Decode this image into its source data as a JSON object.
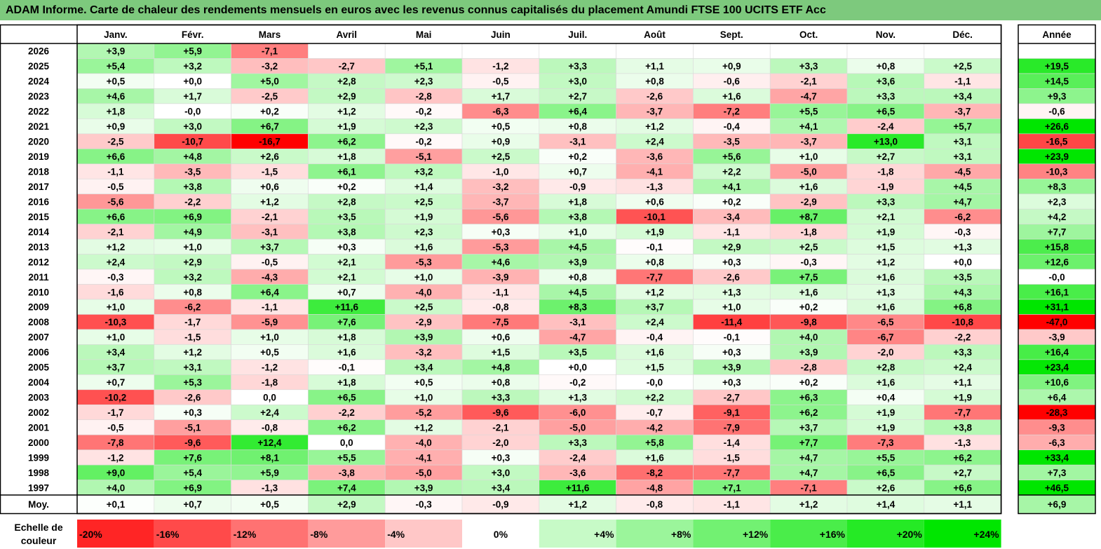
{
  "title": "ADAM Informe. Carte de chaleur des rendements mensuels en euros avec les revenus connus capitalisés du placement Amundi FTSE 100 UCITS ETF Acc",
  "colors": {
    "title_bg": "#7dc97d",
    "negative_max": "#ff0000",
    "positive_max": "#00e600",
    "neutral": "#ffffff"
  },
  "chart_data": {
    "type": "heatmap",
    "title": "ADAM Informe. Carte de chaleur des rendements mensuels en euros avec les revenus connus capitalisés du placement Amundi FTSE 100 UCITS ETF Acc",
    "months": [
      "Janv.",
      "Févr.",
      "Mars",
      "Avril",
      "Mai",
      "Juin",
      "Juil.",
      "Août",
      "Sept.",
      "Oct.",
      "Nov.",
      "Déc."
    ],
    "year_header": "Année",
    "rows": [
      {
        "year": "2026",
        "months": [
          "+3,9",
          "+5,9",
          "-7,1",
          "",
          "",
          "",
          "",
          "",
          "",
          "",
          "",
          ""
        ],
        "annual": ""
      },
      {
        "year": "2025",
        "months": [
          "+5,4",
          "+3,2",
          "-3,2",
          "-2,7",
          "+5,1",
          "-1,2",
          "+3,3",
          "+1,1",
          "+0,9",
          "+3,3",
          "+0,8",
          "+2,5"
        ],
        "annual": "+19,5"
      },
      {
        "year": "2024",
        "months": [
          "+0,5",
          "+0,0",
          "+5,0",
          "+2,8",
          "+2,3",
          "-0,5",
          "+3,0",
          "+0,8",
          "-0,6",
          "-2,1",
          "+3,6",
          "-1,1"
        ],
        "annual": "+14,5"
      },
      {
        "year": "2023",
        "months": [
          "+4,6",
          "+1,7",
          "-2,5",
          "+2,9",
          "-2,8",
          "+1,7",
          "+2,7",
          "-2,6",
          "+1,6",
          "-4,7",
          "+3,3",
          "+3,4"
        ],
        "annual": "+9,3"
      },
      {
        "year": "2022",
        "months": [
          "+1,8",
          "-0,0",
          "+0,2",
          "+1,2",
          "-0,2",
          "-6,3",
          "+6,4",
          "-3,7",
          "-7,2",
          "+5,5",
          "+6,5",
          "-3,7"
        ],
        "annual": "-0,6"
      },
      {
        "year": "2021",
        "months": [
          "+0,9",
          "+3,0",
          "+6,7",
          "+1,9",
          "+2,3",
          "+0,5",
          "+0,8",
          "+1,2",
          "-0,4",
          "+4,1",
          "-2,4",
          "+5,7"
        ],
        "annual": "+26,6"
      },
      {
        "year": "2020",
        "months": [
          "-2,5",
          "-10,7",
          "-16,7",
          "+6,2",
          "-0,2",
          "+0,9",
          "-3,1",
          "+2,4",
          "-3,5",
          "-3,7",
          "+13,0",
          "+3,1"
        ],
        "annual": "-16,5"
      },
      {
        "year": "2019",
        "months": [
          "+6,6",
          "+4,8",
          "+2,6",
          "+1,8",
          "-5,1",
          "+2,5",
          "+0,2",
          "-3,6",
          "+5,6",
          "+1,0",
          "+2,7",
          "+3,1"
        ],
        "annual": "+23,9"
      },
      {
        "year": "2018",
        "months": [
          "-1,1",
          "-3,5",
          "-1,5",
          "+6,1",
          "+3,2",
          "-1,0",
          "+0,7",
          "-4,1",
          "+2,2",
          "-5,0",
          "-1,8",
          "-4,5"
        ],
        "annual": "-10,3"
      },
      {
        "year": "2017",
        "months": [
          "-0,5",
          "+3,8",
          "+0,6",
          "+0,2",
          "+1,4",
          "-3,2",
          "-0,9",
          "-1,3",
          "+4,1",
          "+1,6",
          "-1,9",
          "+4,5"
        ],
        "annual": "+8,3"
      },
      {
        "year": "2016",
        "months": [
          "-5,6",
          "-2,2",
          "+1,2",
          "+2,8",
          "+2,5",
          "-3,7",
          "+1,8",
          "+0,6",
          "+0,2",
          "-2,9",
          "+3,3",
          "+4,7"
        ],
        "annual": "+2,3"
      },
      {
        "year": "2015",
        "months": [
          "+6,6",
          "+6,9",
          "-2,1",
          "+3,5",
          "+1,9",
          "-5,6",
          "+3,8",
          "-10,1",
          "-3,4",
          "+8,7",
          "+2,1",
          "-6,2"
        ],
        "annual": "+4,2"
      },
      {
        "year": "2014",
        "months": [
          "-2,1",
          "+4,9",
          "-3,1",
          "+3,8",
          "+2,3",
          "+0,3",
          "+1,0",
          "+1,9",
          "-1,1",
          "-1,8",
          "+1,9",
          "-0,3"
        ],
        "annual": "+7,7"
      },
      {
        "year": "2013",
        "months": [
          "+1,2",
          "+1,0",
          "+3,7",
          "+0,3",
          "+1,6",
          "-5,3",
          "+4,5",
          "-0,1",
          "+2,9",
          "+2,5",
          "+1,5",
          "+1,3"
        ],
        "annual": "+15,8"
      },
      {
        "year": "2012",
        "months": [
          "+2,4",
          "+2,9",
          "-0,5",
          "+2,1",
          "-5,3",
          "+4,6",
          "+3,9",
          "+0,8",
          "+0,3",
          "-0,3",
          "+1,2",
          "+0,0"
        ],
        "annual": "+12,6"
      },
      {
        "year": "2011",
        "months": [
          "-0,3",
          "+3,2",
          "-4,3",
          "+2,1",
          "+1,0",
          "-3,9",
          "+0,8",
          "-7,7",
          "-2,6",
          "+7,5",
          "+1,6",
          "+3,5"
        ],
        "annual": "-0,0"
      },
      {
        "year": "2010",
        "months": [
          "-1,6",
          "+0,8",
          "+6,4",
          "+0,7",
          "-4,0",
          "-1,1",
          "+4,5",
          "+1,2",
          "+1,3",
          "+1,6",
          "+1,3",
          "+4,3"
        ],
        "annual": "+16,1"
      },
      {
        "year": "2009",
        "months": [
          "+1,0",
          "-6,2",
          "-1,1",
          "+11,6",
          "+2,5",
          "-0,8",
          "+8,3",
          "+3,7",
          "+1,0",
          "+0,2",
          "+1,6",
          "+6,8"
        ],
        "annual": "+31,1"
      },
      {
        "year": "2008",
        "months": [
          "-10,3",
          "-1,7",
          "-5,9",
          "+7,6",
          "-2,9",
          "-7,5",
          "-3,1",
          "+2,4",
          "-11,4",
          "-9,8",
          "-6,5",
          "-10,8"
        ],
        "annual": "-47,0"
      },
      {
        "year": "2007",
        "months": [
          "+1,0",
          "-1,5",
          "+1,0",
          "+1,8",
          "+3,9",
          "+0,6",
          "-4,7",
          "-0,4",
          "-0,1",
          "+4,0",
          "-6,7",
          "-2,2"
        ],
        "annual": "-3,9"
      },
      {
        "year": "2006",
        "months": [
          "+3,4",
          "+1,2",
          "+0,5",
          "+1,6",
          "-3,2",
          "+1,5",
          "+3,5",
          "+1,6",
          "+0,3",
          "+3,9",
          "-2,0",
          "+3,3"
        ],
        "annual": "+16,4"
      },
      {
        "year": "2005",
        "months": [
          "+3,7",
          "+3,1",
          "-1,2",
          "-0,1",
          "+3,4",
          "+4,8",
          "+0,0",
          "+1,5",
          "+3,9",
          "-2,8",
          "+2,8",
          "+2,4"
        ],
        "annual": "+23,4"
      },
      {
        "year": "2004",
        "months": [
          "+0,7",
          "+5,3",
          "-1,8",
          "+1,8",
          "+0,5",
          "+0,8",
          "-0,2",
          "-0,0",
          "+0,3",
          "+0,2",
          "+1,6",
          "+1,1"
        ],
        "annual": "+10,6"
      },
      {
        "year": "2003",
        "months": [
          "-10,2",
          "-2,6",
          "0,0",
          "+6,5",
          "+1,0",
          "+3,3",
          "+1,3",
          "+2,2",
          "-2,7",
          "+6,3",
          "+0,4",
          "+1,9"
        ],
        "annual": "+6,4"
      },
      {
        "year": "2002",
        "months": [
          "-1,7",
          "+0,3",
          "+2,4",
          "-2,2",
          "-5,2",
          "-9,6",
          "-6,0",
          "-0,7",
          "-9,1",
          "+6,2",
          "+1,9",
          "-7,7"
        ],
        "annual": "-28,3"
      },
      {
        "year": "2001",
        "months": [
          "-0,5",
          "-5,1",
          "-0,8",
          "+6,2",
          "+1,2",
          "-2,1",
          "-5,0",
          "-4,2",
          "-7,9",
          "+3,7",
          "+1,9",
          "+3,8"
        ],
        "annual": "-9,3"
      },
      {
        "year": "2000",
        "months": [
          "-7,8",
          "-9,6",
          "+12,4",
          "0,0",
          "-4,0",
          "-2,0",
          "+3,3",
          "+5,8",
          "-1,4",
          "+7,7",
          "-7,3",
          "-1,3"
        ],
        "annual": "-6,3"
      },
      {
        "year": "1999",
        "months": [
          "-1,2",
          "+7,6",
          "+8,1",
          "+5,5",
          "-4,1",
          "+0,3",
          "-2,4",
          "+1,6",
          "-1,5",
          "+4,7",
          "+5,5",
          "+6,2"
        ],
        "annual": "+33,4"
      },
      {
        "year": "1998",
        "months": [
          "+9,0",
          "+5,4",
          "+5,9",
          "-3,8",
          "-5,0",
          "+3,0",
          "-3,6",
          "-8,2",
          "-7,7",
          "+4,7",
          "+6,5",
          "+2,7"
        ],
        "annual": "+7,3"
      },
      {
        "year": "1997",
        "months": [
          "+4,0",
          "+6,9",
          "-1,3",
          "+7,4",
          "+3,9",
          "+3,4",
          "+11,6",
          "-4,8",
          "+7,1",
          "-7,1",
          "+2,6",
          "+6,6"
        ],
        "annual": "+46,5"
      }
    ],
    "average": {
      "label": "Moy.",
      "months": [
        "+0,1",
        "+0,7",
        "+0,5",
        "+2,9",
        "-0,3",
        "-0,9",
        "+1,2",
        "-0,8",
        "-1,1",
        "+1,2",
        "+1,4",
        "+1,1"
      ],
      "annual": "+6,9"
    },
    "legend": {
      "label": "Echelle de couleur",
      "label_lines": [
        "Echelle de",
        "couleur"
      ],
      "steps": [
        {
          "label": "-20%",
          "value": -20
        },
        {
          "label": "-16%",
          "value": -16
        },
        {
          "label": "-12%",
          "value": -12
        },
        {
          "label": "-8%",
          "value": -8
        },
        {
          "label": "-4%",
          "value": -4
        },
        {
          "label": "0%",
          "value": 0
        },
        {
          "label": "+4%",
          "value": 4
        },
        {
          "label": "+8%",
          "value": 8
        },
        {
          "label": "+12%",
          "value": 12
        },
        {
          "label": "+16%",
          "value": 16
        },
        {
          "label": "+20%",
          "value": 20
        },
        {
          "label": "+24%",
          "value": 24
        }
      ]
    }
  }
}
